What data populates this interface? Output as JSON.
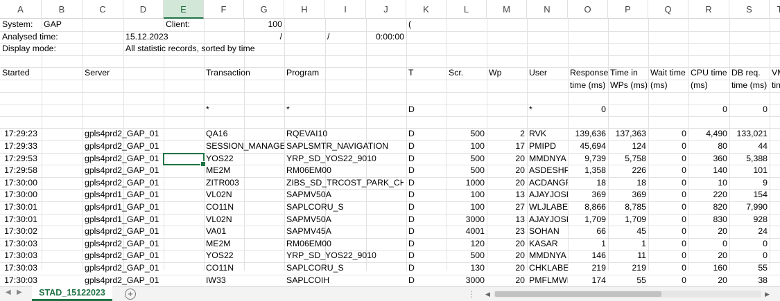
{
  "columns": [
    "A",
    "B",
    "C",
    "D",
    "E",
    "F",
    "G",
    "H",
    "I",
    "J",
    "K",
    "L",
    "M",
    "N",
    "O",
    "P",
    "Q",
    "R",
    "S",
    "T"
  ],
  "header_rows": [
    {
      "A": "System:",
      "B": "GAP",
      "E": "Client:",
      "G": "100",
      "K": "("
    },
    {
      "A": "Analysed time:",
      "D": "15.12.2023",
      "G": "/",
      "I": "/",
      "J": "0:00:00"
    },
    {
      "A": "Display mode:",
      "D": "All statistic records, sorted by time"
    }
  ],
  "table_header": {
    "A": "Started",
    "C": "Server",
    "F": "Transaction",
    "H": "Program",
    "K": "T",
    "L": "Scr.",
    "M": "Wp",
    "N": "User",
    "O": "Response",
    "O2": "time (ms)",
    "P": "Time in",
    "P2": "WPs (ms)",
    "Q": "Wait time",
    "Q2": "(ms)",
    "R": "CPU time",
    "R2": "(ms)",
    "S": "DB req.",
    "S2": "time (ms)",
    "T": "VM",
    "T2": "tin"
  },
  "filter_row": {
    "F": "*",
    "H": "*",
    "K": "D",
    "N": "*",
    "O": "0",
    "R": "0",
    "S": "0"
  },
  "data_rows": [
    {
      "A": "17:29:23",
      "C": "gpls4prd2_GAP_01",
      "F": "QA16",
      "H": "RQEVAI10",
      "K": "D",
      "L": "500",
      "M": "2",
      "N": "RVK",
      "O": "139,636",
      "P": "137,363",
      "Q": "0",
      "R": "4,490",
      "S": "133,021"
    },
    {
      "A": "17:29:33",
      "C": "gpls4prd2_GAP_01",
      "F": "SESSION_MANAGER",
      "H": "SAPLSMTR_NAVIGATION",
      "K": "D",
      "L": "100",
      "M": "17",
      "N": "PMIPD",
      "O": "45,694",
      "P": "124",
      "Q": "0",
      "R": "80",
      "S": "44"
    },
    {
      "A": "17:29:53",
      "C": "gpls4prd2_GAP_01",
      "F": "YOS22",
      "H": "YRP_SD_YOS22_9010",
      "K": "D",
      "L": "500",
      "M": "20",
      "N": "MMDNYA",
      "O": "9,739",
      "P": "5,758",
      "Q": "0",
      "R": "360",
      "S": "5,388"
    },
    {
      "A": "17:29:58",
      "C": "gpls4prd2_GAP_01",
      "F": "ME2M",
      "H": "RM06EM00",
      "K": "D",
      "L": "500",
      "M": "20",
      "N": "ASDESHPA",
      "O": "1,358",
      "P": "226",
      "Q": "0",
      "R": "140",
      "S": "101"
    },
    {
      "A": "17:30:00",
      "C": "gpls4prd2_GAP_01",
      "F": "ZITR003",
      "H": "ZIBS_SD_TRCOST_PARK_CH",
      "K": "D",
      "L": "1000",
      "M": "20",
      "N": "ACDANGR",
      "O": "18",
      "P": "18",
      "Q": "0",
      "R": "10",
      "S": "9"
    },
    {
      "A": "17:30:00",
      "C": "gpls4prd1_GAP_01",
      "F": "VL02N",
      "H": "SAPMV50A",
      "K": "D",
      "L": "100",
      "M": "13",
      "N": "AJAYJOSH",
      "O": "369",
      "P": "369",
      "Q": "0",
      "R": "220",
      "S": "154"
    },
    {
      "A": "17:30:01",
      "C": "gpls4prd1_GAP_01",
      "F": "CO11N",
      "H": "SAPLCORU_S",
      "K": "D",
      "L": "100",
      "M": "27",
      "N": "WLJLABEL",
      "O": "8,866",
      "P": "8,785",
      "Q": "0",
      "R": "820",
      "S": "7,990"
    },
    {
      "A": "17:30:01",
      "C": "gpls4prd1_GAP_01",
      "F": "VL02N",
      "H": "SAPMV50A",
      "K": "D",
      "L": "3000",
      "M": "13",
      "N": "AJAYJOSH",
      "O": "1,709",
      "P": "1,709",
      "Q": "0",
      "R": "830",
      "S": "928"
    },
    {
      "A": "17:30:02",
      "C": "gpls4prd2_GAP_01",
      "F": "VA01",
      "H": "SAPMV45A",
      "K": "D",
      "L": "4001",
      "M": "23",
      "N": "SOHAN",
      "O": "66",
      "P": "45",
      "Q": "0",
      "R": "20",
      "S": "24"
    },
    {
      "A": "17:30:03",
      "C": "gpls4prd2_GAP_01",
      "F": "ME2M",
      "H": "RM06EM00",
      "K": "D",
      "L": "120",
      "M": "20",
      "N": "KASAR",
      "O": "1",
      "P": "1",
      "Q": "0",
      "R": "0",
      "S": "0"
    },
    {
      "A": "17:30:03",
      "C": "gpls4prd2_GAP_01",
      "F": "YOS22",
      "H": "YRP_SD_YOS22_9010",
      "K": "D",
      "L": "500",
      "M": "20",
      "N": "MMDNYA",
      "O": "146",
      "P": "11",
      "Q": "0",
      "R": "20",
      "S": "0"
    },
    {
      "A": "17:30:03",
      "C": "gpls4prd2_GAP_01",
      "F": "CO11N",
      "H": "SAPLCORU_S",
      "K": "D",
      "L": "130",
      "M": "20",
      "N": "CHKLABEL",
      "O": "219",
      "P": "219",
      "Q": "0",
      "R": "160",
      "S": "55"
    },
    {
      "A": "17:30:03",
      "C": "gpls4prd2_GAP_01",
      "F": "IW33",
      "H": "SAPLCOIH",
      "K": "D",
      "L": "3000",
      "M": "20",
      "N": "PMFLMWI",
      "O": "174",
      "P": "55",
      "Q": "0",
      "R": "20",
      "S": "38"
    }
  ],
  "selected_column": "E",
  "sheet_tab": "STAD_15122023",
  "add_sheet_glyph": "+",
  "colors": {
    "accent": "#217346",
    "grid": "#e2e2e2"
  }
}
